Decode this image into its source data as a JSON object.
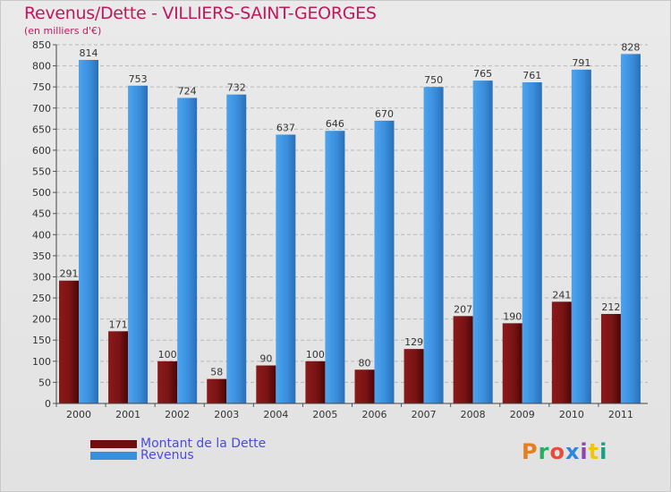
{
  "title": "Revenus/Dette - VILLIERS-SAINT-GEORGES",
  "subtitle": "(en milliers d'€)",
  "logo": {
    "text": "Proxiti",
    "colors": [
      "#e67e22",
      "#27ae60",
      "#e74c3c",
      "#2e86de",
      "#8e44ad",
      "#f1c40f",
      "#16a085"
    ]
  },
  "chart_data": {
    "type": "bar",
    "title": "Revenus/Dette - VILLIERS-SAINT-GEORGES",
    "ylabel": "(en milliers d'€)",
    "xlabel": "",
    "ylim": [
      0,
      850
    ],
    "yticks": [
      0,
      50,
      100,
      150,
      200,
      250,
      300,
      350,
      400,
      450,
      500,
      550,
      600,
      650,
      700,
      750,
      800,
      850
    ],
    "grid": true,
    "legend_position": "bottom-left",
    "categories": [
      "2000",
      "2001",
      "2002",
      "2003",
      "2004",
      "2005",
      "2006",
      "2007",
      "2008",
      "2009",
      "2010",
      "2011"
    ],
    "series": [
      {
        "name": "Montant de la Dette",
        "color": "#6e0f0f",
        "values": [
          291,
          171,
          100,
          58,
          90,
          100,
          80,
          129,
          207,
          190,
          241,
          212
        ]
      },
      {
        "name": "Revenus",
        "color": "#3a8fdd",
        "values": [
          814,
          753,
          724,
          732,
          637,
          646,
          670,
          750,
          765,
          761,
          791,
          828
        ]
      }
    ]
  }
}
